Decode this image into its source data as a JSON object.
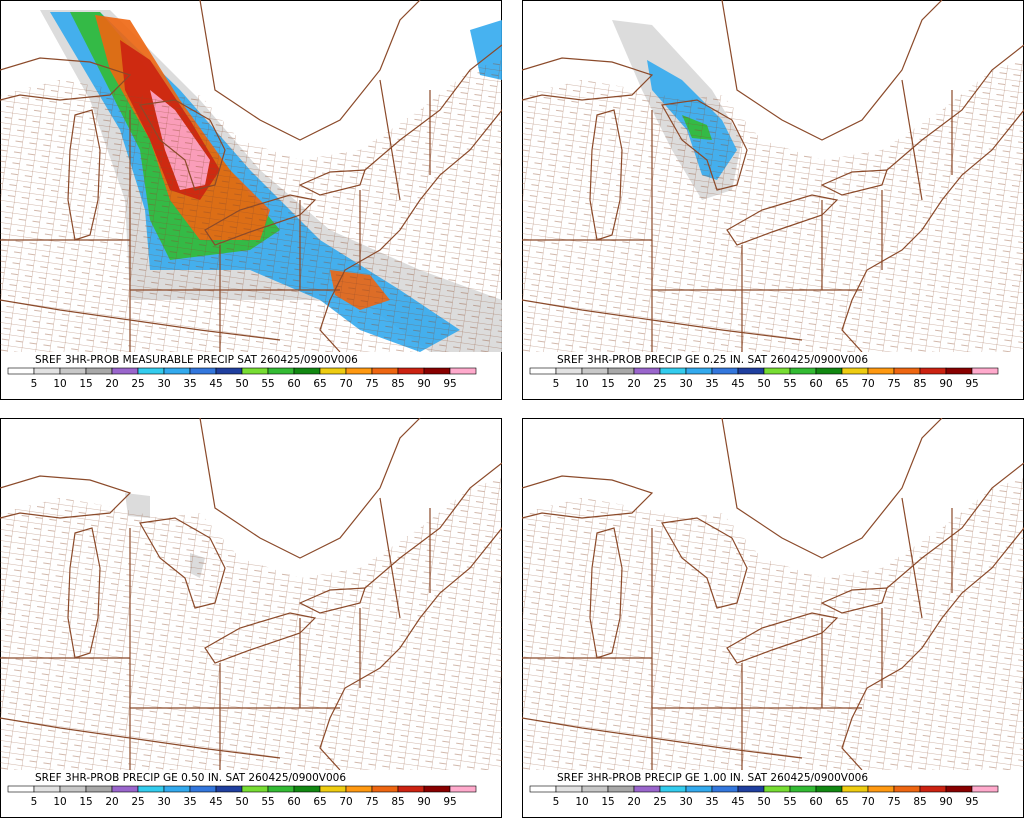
{
  "panels": [
    {
      "title": "SREF 3HR-PROB MEASURABLE PRECIP SAT 260425/0900V006"
    },
    {
      "title": "SREF 3HR-PROB PRECIP GE 0.25 IN. SAT 260425/0900V006"
    },
    {
      "title": "SREF 3HR-PROB PRECIP GE 0.50 IN. SAT 260425/0900V006"
    },
    {
      "title": "SREF 3HR-PROB PRECIP GE 1.00 IN. SAT 260425/0900V006"
    }
  ],
  "legend": {
    "labels": [
      "5",
      "10",
      "15",
      "20",
      "25",
      "30",
      "35",
      "45",
      "50",
      "55",
      "60",
      "65",
      "70",
      "75",
      "85",
      "90",
      "95"
    ],
    "colors": [
      "#ffffff",
      "#e2e2e2",
      "#c8c8c8",
      "#a8a8a8",
      "#9a66cc",
      "#33ccee",
      "#33aaee",
      "#3377dd",
      "#1f3f9f",
      "#77dd33",
      "#33bb33",
      "#118811",
      "#eecc11",
      "#ff9911",
      "#ee6611",
      "#cc2211",
      "#880000",
      "#ffaacc"
    ]
  }
}
